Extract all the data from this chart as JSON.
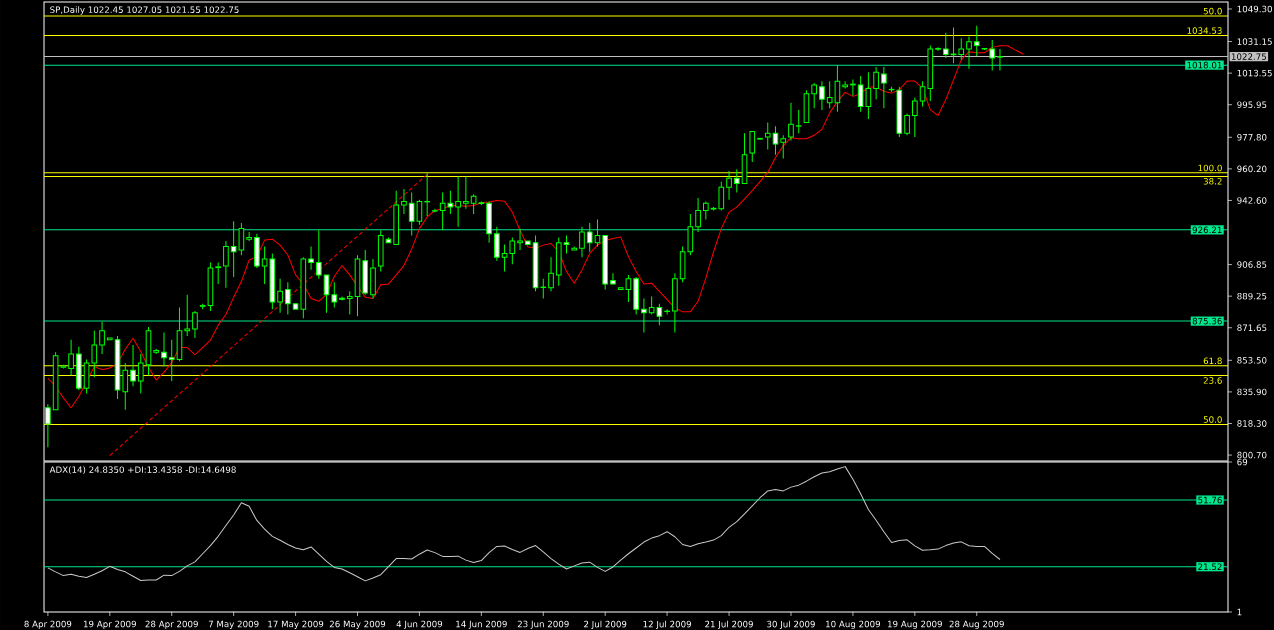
{
  "chart_data": [
    {
      "type": "candlestick",
      "title": "SP,Daily 1022.45 1027.05 1021.55 1022.75",
      "color": "#00ff00",
      "categories": [
        null,
        null,
        null,
        null,
        null,
        null,
        null,
        null,
        null,
        null,
        null,
        null,
        null,
        null,
        null,
        null,
        null,
        null,
        null,
        null,
        null,
        null,
        null,
        null,
        null,
        null,
        null,
        null,
        null,
        null,
        null,
        null,
        null,
        null,
        null,
        null,
        null,
        null,
        null,
        null,
        null,
        null,
        null,
        null,
        null,
        null,
        null,
        null,
        null,
        null,
        null,
        null,
        null,
        null,
        null,
        null,
        null,
        null,
        null,
        null,
        null,
        null,
        null,
        null,
        null,
        null,
        null,
        null,
        null,
        null,
        null,
        null,
        null,
        null,
        null,
        null,
        null,
        null,
        null,
        null,
        null,
        null,
        null,
        null,
        null,
        null,
        null,
        null,
        null,
        null,
        null,
        null,
        null,
        null,
        null,
        null,
        null,
        null,
        null,
        null,
        null,
        null,
        null,
        null,
        null,
        null,
        null,
        null,
        null,
        null,
        null,
        null,
        null,
        null,
        null,
        null,
        null,
        null,
        null,
        null,
        null,
        null,
        null,
        null,
        null,
        null,
        null
      ],
      "ohlc": [
        [
          827,
          829,
          805,
          818
        ],
        [
          826,
          858,
          826,
          856
        ],
        [
          849.6,
          851,
          849,
          850.3
        ],
        [
          849,
          865,
          845,
          857
        ],
        [
          857,
          861,
          837,
          838
        ],
        [
          838,
          854,
          835,
          852
        ],
        [
          852,
          870,
          844,
          862
        ],
        [
          862,
          875,
          857,
          870
        ],
        [
          865,
          866,
          865,
          866
        ],
        [
          865,
          867,
          832,
          837
        ],
        [
          836,
          852,
          826,
          848
        ],
        [
          848,
          862,
          839,
          842
        ],
        [
          842,
          857,
          835,
          852
        ],
        [
          851,
          872,
          845,
          870
        ],
        [
          858,
          860,
          857,
          859
        ],
        [
          858,
          869,
          850,
          855
        ],
        [
          855,
          865,
          842,
          854
        ],
        [
          854,
          883,
          853,
          870
        ],
        [
          870,
          890,
          867,
          871
        ],
        [
          871,
          881,
          866,
          880
        ],
        [
          883.6,
          885,
          882,
          884
        ],
        [
          884,
          908,
          881,
          905
        ],
        [
          905.2,
          908,
          896,
          905.6
        ],
        [
          906,
          920,
          894,
          917
        ],
        [
          917,
          931,
          900,
          914
        ],
        [
          915,
          930,
          912,
          927
        ],
        [
          921,
          925,
          920,
          922
        ],
        [
          922,
          924,
          905,
          906
        ],
        [
          906,
          917,
          896,
          910
        ],
        [
          910,
          913,
          882,
          886
        ],
        [
          886,
          899,
          880,
          892
        ],
        [
          893,
          897,
          879,
          885
        ],
        [
          885,
          885,
          882,
          882
        ],
        [
          882,
          911,
          877,
          910
        ],
        [
          910,
          917,
          904,
          908
        ],
        [
          908,
          926,
          899,
          901
        ],
        [
          901,
          901,
          880,
          890
        ],
        [
          890,
          897,
          883,
          886
        ],
        [
          888.1,
          889,
          887,
          887.5
        ],
        [
          888,
          892,
          879,
          889
        ],
        [
          889,
          912,
          878,
          910
        ],
        [
          909,
          915,
          890,
          891
        ],
        [
          890,
          910,
          888,
          905
        ],
        [
          906,
          926,
          903,
          923
        ],
        [
          921,
          922,
          919,
          919
        ],
        [
          918,
          948,
          918,
          940
        ],
        [
          940,
          949,
          935,
          942
        ],
        [
          941,
          947,
          923,
          931
        ],
        [
          931,
          943,
          929,
          942
        ],
        [
          941.8,
          958,
          934,
          942
        ],
        [
          936.7,
          938,
          936,
          936.9
        ],
        [
          937,
          947,
          926,
          941
        ],
        [
          941,
          948,
          935,
          939
        ],
        [
          939,
          956,
          928,
          942
        ],
        [
          941,
          956,
          938,
          942
        ],
        [
          941,
          946,
          935,
          945
        ],
        [
          940.9,
          942,
          940,
          941.3
        ],
        [
          941,
          942,
          919,
          924
        ],
        [
          924,
          928,
          909,
          911
        ],
        [
          911,
          918,
          903,
          913
        ],
        [
          913,
          922,
          907,
          920
        ],
        [
          919,
          927,
          915,
          920
        ],
        [
          920,
          920,
          918,
          918
        ],
        [
          919,
          923,
          892,
          894
        ],
        [
          894.1,
          899,
          888,
          894.3
        ],
        [
          894,
          911,
          892,
          902
        ],
        [
          901,
          922,
          895,
          919
        ],
        [
          919,
          923,
          913,
          918
        ],
        [
          915,
          917,
          915,
          916
        ],
        [
          916,
          928,
          911,
          925
        ],
        [
          925,
          930,
          914,
          919
        ],
        [
          919,
          932,
          917,
          923
        ],
        [
          923,
          923,
          893,
          896
        ],
        [
          898,
          902,
          896,
          896
        ],
        [
          893,
          894,
          893,
          894
        ],
        [
          893,
          901,
          886,
          899
        ],
        [
          899,
          900,
          879,
          882
        ],
        [
          882,
          888,
          869,
          880
        ],
        [
          880,
          889,
          879,
          883
        ],
        [
          883,
          885,
          873,
          878
        ],
        [
          880.7,
          882,
          879,
          880.9
        ],
        [
          881,
          902,
          869,
          899
        ],
        [
          899,
          917,
          897,
          914
        ],
        [
          914,
          935,
          912,
          928
        ],
        [
          928,
          944,
          925,
          937
        ],
        [
          937,
          942,
          932,
          941
        ],
        [
          937.8,
          939,
          937,
          938.2
        ],
        [
          938,
          953,
          937,
          950
        ],
        [
          950,
          959,
          943,
          955
        ],
        [
          955,
          960,
          947,
          952
        ],
        [
          952,
          980,
          952,
          968
        ],
        [
          969,
          981,
          964,
          981
        ],
        [
          976.8,
          977.4,
          976.3,
          977.2
        ],
        [
          978,
          986,
          971,
          980
        ],
        [
          980,
          984,
          968,
          974
        ],
        [
          975,
          979,
          966,
          977
        ],
        [
          978,
          997,
          976,
          985
        ],
        [
          984,
          993,
          980,
          984.2
        ],
        [
          986,
          1004,
          986,
          1002
        ],
        [
          1002,
          1008,
          994,
          1007
        ],
        [
          1006,
          1009,
          993,
          999
        ],
        [
          997,
          1009,
          994,
          1000
        ],
        [
          997,
          1018,
          992,
          1009
        ],
        [
          1006,
          1009,
          1005,
          1007
        ],
        [
          1007,
          1010,
          1001,
          1007.4
        ],
        [
          1007,
          1012,
          992,
          995
        ],
        [
          995,
          1014,
          988,
          1005
        ],
        [
          1005,
          1017,
          999,
          1014
        ],
        [
          1013,
          1017,
          994,
          1008
        ],
        [
          1004.5,
          1006,
          1003,
          1004.3
        ],
        [
          1004,
          1006,
          978,
          980
        ],
        [
          980,
          991,
          979,
          990
        ],
        [
          990,
          1000,
          978,
          998
        ],
        [
          998,
          1009,
          995,
          1006
        ],
        [
          1005,
          1029,
          998,
          1027
        ],
        [
          1026.9,
          1028,
          1026,
          1027.3
        ],
        [
          1027,
          1036,
          1022,
          1024
        ],
        [
          1023.8,
          1039,
          1019,
          1024.2
        ],
        [
          1024,
          1033,
          1021,
          1027
        ],
        [
          1027,
          1034,
          1016,
          1031
        ],
        [
          1031,
          1040,
          1023,
          1029
        ],
        [
          1027,
          1027.5,
          1026.4,
          1027.3
        ],
        [
          1027,
          1032,
          1015,
          1022
        ],
        [
          1022.45,
          1027.05,
          1015,
          1022.75
        ],
        null,
        null,
        null
      ],
      "series": [
        {
          "type": "line",
          "color": "#ff0000",
          "values": [
            843.5,
            838.9,
            832.6,
            827.1,
            833.3,
            null,
            849.9,
            848.3,
            849.2,
            851.8,
            859.7,
            865.8,
            858.4,
            849.5,
            842.6,
            846.8,
            852.3,
            860.6,
            860.6,
            856.6,
            860.6,
            864.7,
            873.1,
            879.0,
            888.6,
            897.4,
            909.4,
            911.3,
            920.5,
            921.0,
            917.7,
            912.2,
            901.1,
            896.0,
            887.9,
            886.4,
            890.1,
            900.2,
            906.3,
            901.1,
            null,
            888.6,
            887.9,
            895.6,
            896.0,
            901.1,
            906.3,
            915.5,
            926.9,
            933.4,
            937.0,
            938.0,
            939.8,
            939.8,
            939.3,
            939.8,
            941.3,
            941.7,
            942.6,
            942.2,
            936.1,
            926.0,
            916.8,
            915.9,
            917.7,
            918.6,
            914.0,
            903.0,
            896.5,
            903.9,
            913.1,
            917.7,
            920.3,
            921.4,
            922.3,
            911.3,
            903.0,
            896.0,
            896.5,
            891.9,
            887.3,
            882.7,
            880.5,
            880.5,
            886.4,
            899.3,
            914.0,
            926.9,
            936.1,
            938.9,
            943.5,
            948.1,
            953.1,
            958.2,
            966.5,
            973.0,
            977.6,
            977.0,
            977.0,
            978.9,
            982.2,
            991.4,
            997.8,
            1002.8,
            1000.6,
            1002.1,
            1005.8,
            1005.8,
            1003.4,
            1002.4,
            1004.3,
            1009.1,
            1009.1,
            1005.2,
            993.2,
            989.9,
            998.8,
            1009.8,
            1020.9,
            1025.5,
            1024.9,
            1024.9,
            1027.9,
            1028.8,
            1028.8,
            1026.4,
            1024.2
          ]
        },
        {
          "type": "line",
          "color": "#ff0000",
          "line_style": "dashed",
          "values": [
            null,
            null,
            null,
            null,
            null,
            null,
            null,
            null,
            800.4,
            null,
            null,
            null,
            null,
            null,
            null,
            null,
            null,
            null,
            null,
            null,
            null,
            null,
            null,
            null,
            null,
            null,
            null,
            null,
            null,
            null,
            null,
            null,
            null,
            null,
            null,
            null,
            null,
            null,
            null,
            null,
            null,
            null,
            null,
            null,
            null,
            null,
            null,
            null,
            null,
            957.1,
            null,
            null,
            null,
            null,
            null,
            null,
            null,
            null,
            null,
            null,
            null,
            null,
            null,
            null,
            null,
            null,
            null,
            null,
            null,
            null,
            null,
            null,
            null,
            null,
            null,
            null,
            null,
            null,
            null,
            null,
            null,
            null,
            null,
            null,
            null,
            null,
            null,
            null,
            null,
            null,
            null,
            null,
            null,
            null,
            null,
            null,
            null,
            null,
            null,
            null,
            null,
            null,
            null,
            null,
            null,
            null,
            null,
            null,
            null,
            null,
            null,
            null,
            null,
            null,
            null,
            null,
            null,
            null,
            null,
            null,
            null,
            null,
            null,
            null,
            null,
            null,
            null
          ]
        }
      ],
      "ylim": [
        797.4,
        1053.2
      ],
      "yticks": [
        {
          "value": 800.7,
          "label": "800.70"
        },
        {
          "value": 818.3,
          "label": "818.30"
        },
        {
          "value": 835.9,
          "label": "835.90"
        },
        {
          "value": 853.5,
          "label": "853.50"
        },
        {
          "value": 871.65,
          "label": "871.65"
        },
        {
          "value": 889.25,
          "label": "889.25"
        },
        {
          "value": 906.85,
          "label": "906.85"
        },
        {
          "value": 942.6,
          "label": "942.60"
        },
        {
          "value": 960.2,
          "label": "960.20"
        },
        {
          "value": 977.8,
          "label": "977.80"
        },
        {
          "value": 995.95,
          "label": "995.95"
        },
        {
          "value": 1013.55,
          "label": "1013.55"
        },
        {
          "value": 1031.15,
          "label": "1031.15"
        },
        {
          "value": 1049.3,
          "label": "1049.30"
        }
      ],
      "tick_labels": "y",
      "ref_lines": [
        {
          "axis": "y",
          "value": 1045.4,
          "color": "#ffff00"
        },
        {
          "axis": "y",
          "value": 1034.53,
          "label": "1034.53",
          "color": "#ffff00"
        },
        {
          "axis": "y",
          "value": 1022.75,
          "label": "1022.75",
          "color": "#c0c0c0"
        },
        {
          "axis": "y",
          "value": 1018.01,
          "label": "1018.01",
          "color": "#00e68c"
        },
        {
          "axis": "y",
          "value": 958.0,
          "color": "#ffff00"
        },
        {
          "axis": "y",
          "value": 956.0,
          "color": "#ffff00"
        },
        {
          "axis": "y",
          "value": 926.21,
          "label": "926.21",
          "color": "#00e68c"
        },
        {
          "axis": "y",
          "value": 875.36,
          "label": "875.36",
          "color": "#00e68c"
        },
        {
          "axis": "y",
          "value": 850.5,
          "color": "#ffff00"
        },
        {
          "axis": "y",
          "value": 845.0,
          "color": "#ffff00"
        },
        {
          "axis": "y",
          "value": 817.8,
          "color": "#ffff00"
        }
      ],
      "annotations": [
        {
          "text": "50.0",
          "y": 1045.4
        },
        {
          "text": "100.0",
          "y": 958.0
        },
        {
          "text": "38.2",
          "y": 956.0
        },
        {
          "text": "61.8",
          "y": 850.5
        },
        {
          "text": "23.6",
          "y": 845.0
        },
        {
          "text": "50.0",
          "y": 817.8
        }
      ]
    },
    {
      "type": "line",
      "title": "ADX(14) 24.8350 +DI:13.4358 -DI:14.6498",
      "categories": [
        "8 Apr 2009",
        null,
        null,
        null,
        null,
        null,
        null,
        null,
        "19 Apr 2009",
        null,
        null,
        null,
        null,
        null,
        null,
        null,
        "28 Apr 2009",
        null,
        null,
        null,
        null,
        null,
        null,
        null,
        "7 May 2009",
        null,
        null,
        null,
        null,
        null,
        null,
        null,
        "17 May 2009",
        null,
        null,
        null,
        null,
        null,
        null,
        null,
        "26 May 2009",
        null,
        null,
        null,
        null,
        null,
        null,
        null,
        "4 Jun 2009",
        null,
        null,
        null,
        null,
        null,
        null,
        null,
        "14 Jun 2009",
        null,
        null,
        null,
        null,
        null,
        null,
        null,
        "23 Jun 2009",
        null,
        null,
        null,
        null,
        null,
        null,
        null,
        "2 Jul 2009",
        null,
        null,
        null,
        null,
        null,
        null,
        null,
        "12 Jul 2009",
        null,
        null,
        null,
        null,
        null,
        null,
        null,
        "21 Jul 2009",
        null,
        null,
        null,
        null,
        null,
        null,
        null,
        "30 Jul 2009",
        null,
        null,
        null,
        null,
        null,
        null,
        null,
        "10 Aug 2009",
        null,
        null,
        null,
        null,
        null,
        null,
        null,
        "19 Aug 2009",
        null,
        null,
        null,
        null,
        null,
        null,
        null,
        "28 Aug 2009",
        null,
        null,
        null,
        null,
        null,
        null
      ],
      "series": [
        {
          "color": "#c8c8c8",
          "values": [
            21.0,
            19.2,
            17.5,
            18.1,
            17.2,
            16.6,
            18.1,
            19.7,
            21.7,
            20.3,
            19.2,
            17.2,
            15.3,
            15.5,
            15.5,
            17.7,
            17.5,
            19.4,
            21.9,
            23.7,
            27.4,
            31.1,
            35.3,
            40.2,
            45.0,
            50.5,
            48.9,
            42.5,
            38.6,
            35.3,
            33.5,
            31.6,
            30.0,
            29.2,
            30.5,
            27.2,
            23.9,
            21.2,
            20.5,
            18.8,
            17.0,
            15.1,
            16.4,
            17.9,
            21.6,
            25.2,
            25.2,
            25.0,
            27.2,
            29.1,
            27.9,
            26.2,
            26.2,
            26.3,
            24.5,
            23.4,
            24.3,
            27.9,
            30.7,
            30.9,
            29.3,
            28.0,
            29.8,
            31.1,
            28.2,
            25.2,
            22.7,
            20.5,
            21.9,
            23.2,
            23.6,
            21.2,
            19.4,
            21.4,
            24.5,
            27.4,
            30.0,
            32.7,
            34.5,
            35.6,
            37.4,
            35.1,
            31.6,
            30.7,
            31.9,
            32.7,
            33.6,
            35.6,
            39.4,
            42.0,
            45.5,
            49.1,
            52.8,
            55.9,
            56.5,
            55.9,
            57.6,
            58.5,
            60.3,
            62.3,
            64.0,
            64.6,
            65.8,
            66.9,
            61.2,
            54.6,
            47.5,
            42.6,
            37.4,
            32.5,
            33.4,
            33.7,
            31.0,
            29.0,
            29.2,
            29.5,
            31.1,
            32.3,
            32.8,
            31.0,
            30.7,
            30.7,
            27.6,
            24.8,
            null,
            null,
            null
          ]
        }
      ],
      "ylim": [
        1,
        69
      ],
      "yticks": [
        1,
        69
      ],
      "ref_lines": [
        {
          "axis": "y",
          "value": 51.76,
          "label": "51.76",
          "color": "#00e68c"
        },
        {
          "axis": "y",
          "value": 21.52,
          "label": "21.52",
          "color": "#00e68c"
        }
      ]
    }
  ]
}
